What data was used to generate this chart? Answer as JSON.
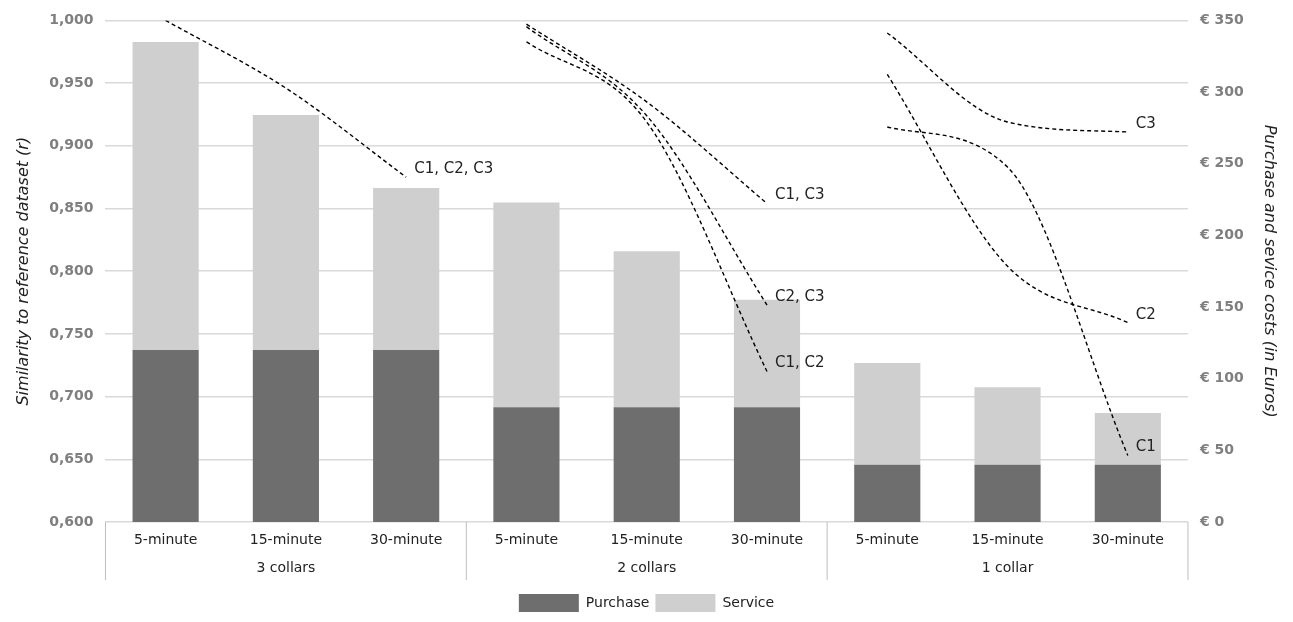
{
  "chart_data": {
    "type": "bar",
    "stacked": true,
    "categories": [
      "5-minute",
      "15-minute",
      "30-minute",
      "5-minute",
      "15-minute",
      "30-minute",
      "5-minute",
      "15-minute",
      "30-minute"
    ],
    "ylabel": "Similarity to reference dataset (r)",
    "y2label": "Purchase and sevice costs (in Euros)",
    "annotations": [
      "3 collars",
      "2 collars",
      "1 collar"
    ],
    "ylim": [
      0.6,
      1.0
    ],
    "yticks": [
      {
        "value": 0.6,
        "label": "0,600"
      },
      {
        "value": 0.65,
        "label": "0,650"
      },
      {
        "value": 0.7,
        "label": "0,700"
      },
      {
        "value": 0.75,
        "label": "0,750"
      },
      {
        "value": 0.8,
        "label": "0,800"
      },
      {
        "value": 0.85,
        "label": "0,850"
      },
      {
        "value": 0.9,
        "label": "0,900"
      },
      {
        "value": 0.95,
        "label": "0,950"
      },
      {
        "value": 1.0,
        "label": "1,000"
      }
    ],
    "y2lim": [
      0,
      350
    ],
    "y2ticks": [
      {
        "value": 0,
        "label": "€ 0"
      },
      {
        "value": 50,
        "label": "€ 50"
      },
      {
        "value": 100,
        "label": "€ 100"
      },
      {
        "value": 150,
        "label": "€ 150"
      },
      {
        "value": 200,
        "label": "€ 200"
      },
      {
        "value": 250,
        "label": "€ 250"
      },
      {
        "value": 300,
        "label": "€ 300"
      },
      {
        "value": 350,
        "label": "€ 350"
      }
    ],
    "grid": "y",
    "legend": "bottom",
    "marker": "none",
    "series": [
      {
        "name": "Purchase",
        "axis": "y2",
        "color": "#6e6e6e",
        "values": [
          120,
          120,
          120,
          80,
          80,
          80,
          40,
          40,
          40
        ]
      },
      {
        "name": "Service",
        "axis": "y2",
        "color": "#cfcfcf",
        "values": [
          215,
          164,
          113,
          143,
          109,
          75,
          71,
          54,
          36
        ]
      },
      {
        "name": "C1, C2, C3",
        "type": "line",
        "line_style": "dashed",
        "color": "#000000",
        "values": [
          1.0,
          0.946,
          0.875,
          null,
          null,
          null,
          null,
          null,
          null
        ]
      },
      {
        "name": "C1, C3",
        "type": "line",
        "line_style": "dashed",
        "color": "#000000",
        "values": [
          null,
          null,
          null,
          0.997,
          0.935,
          0.854,
          null,
          null,
          null
        ]
      },
      {
        "name": "C2, C3",
        "type": "line",
        "line_style": "dashed",
        "color": "#000000",
        "values": [
          null,
          null,
          null,
          0.995,
          0.924,
          0.773,
          null,
          null,
          null
        ]
      },
      {
        "name": "C1, C2",
        "type": "line",
        "line_style": "dashed",
        "color": "#000000",
        "values": [
          null,
          null,
          null,
          0.983,
          0.919,
          0.72,
          null,
          null,
          null
        ]
      },
      {
        "name": "C3",
        "type": "line",
        "line_style": "dashed",
        "color": "#000000",
        "values": [
          null,
          null,
          null,
          null,
          null,
          null,
          0.99,
          0.919,
          0.911
        ]
      },
      {
        "name": "C2",
        "type": "line",
        "line_style": "dashed",
        "color": "#000000",
        "values": [
          null,
          null,
          null,
          null,
          null,
          null,
          0.957,
          0.804,
          0.759
        ]
      },
      {
        "name": "C1",
        "type": "line",
        "line_style": "dashed",
        "color": "#000000",
        "values": [
          null,
          null,
          null,
          null,
          null,
          null,
          0.915,
          0.883,
          0.653
        ]
      }
    ]
  }
}
